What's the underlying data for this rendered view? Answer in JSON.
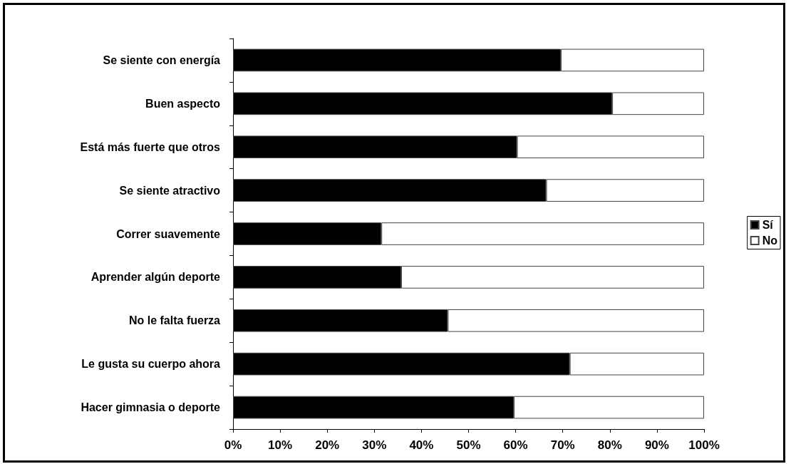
{
  "chart_data": {
    "type": "bar",
    "orientation": "horizontal",
    "stacked": true,
    "categories": [
      "Se siente con energía",
      "Buen aspecto",
      "Está más fuerte que otros",
      "Se siente atractivo",
      "Correr suavemente",
      "Aprender algún deporte",
      "No le falta fuerza",
      "Le gusta su cuerpo ahora",
      "Hacer gimnasia o deporte"
    ],
    "series": [
      {
        "name": "Sí",
        "color": "#000000",
        "values": [
          69.6,
          80.5,
          60.3,
          66.5,
          31.5,
          35.7,
          45.6,
          71.5,
          59.6
        ]
      },
      {
        "name": "No",
        "color": "#ffffff",
        "values": [
          30.4,
          19.5,
          39.7,
          33.5,
          68.5,
          64.3,
          54.4,
          28.5,
          40.4
        ]
      }
    ],
    "xlim": [
      0,
      100
    ],
    "xticks": [
      {
        "value": 0,
        "label": "0%"
      },
      {
        "value": 10,
        "label": "10%"
      },
      {
        "value": 20,
        "label": "20%"
      },
      {
        "value": 30,
        "label": "30%"
      },
      {
        "value": 40,
        "label": "40%"
      },
      {
        "value": 50,
        "label": "50%"
      },
      {
        "value": 60,
        "label": "60%"
      },
      {
        "value": 70,
        "label": "70%"
      },
      {
        "value": 80,
        "label": "80%"
      },
      {
        "value": 90,
        "label": "90%"
      },
      {
        "value": 100,
        "label": "100%"
      }
    ],
    "grid": false,
    "legend": "right"
  }
}
